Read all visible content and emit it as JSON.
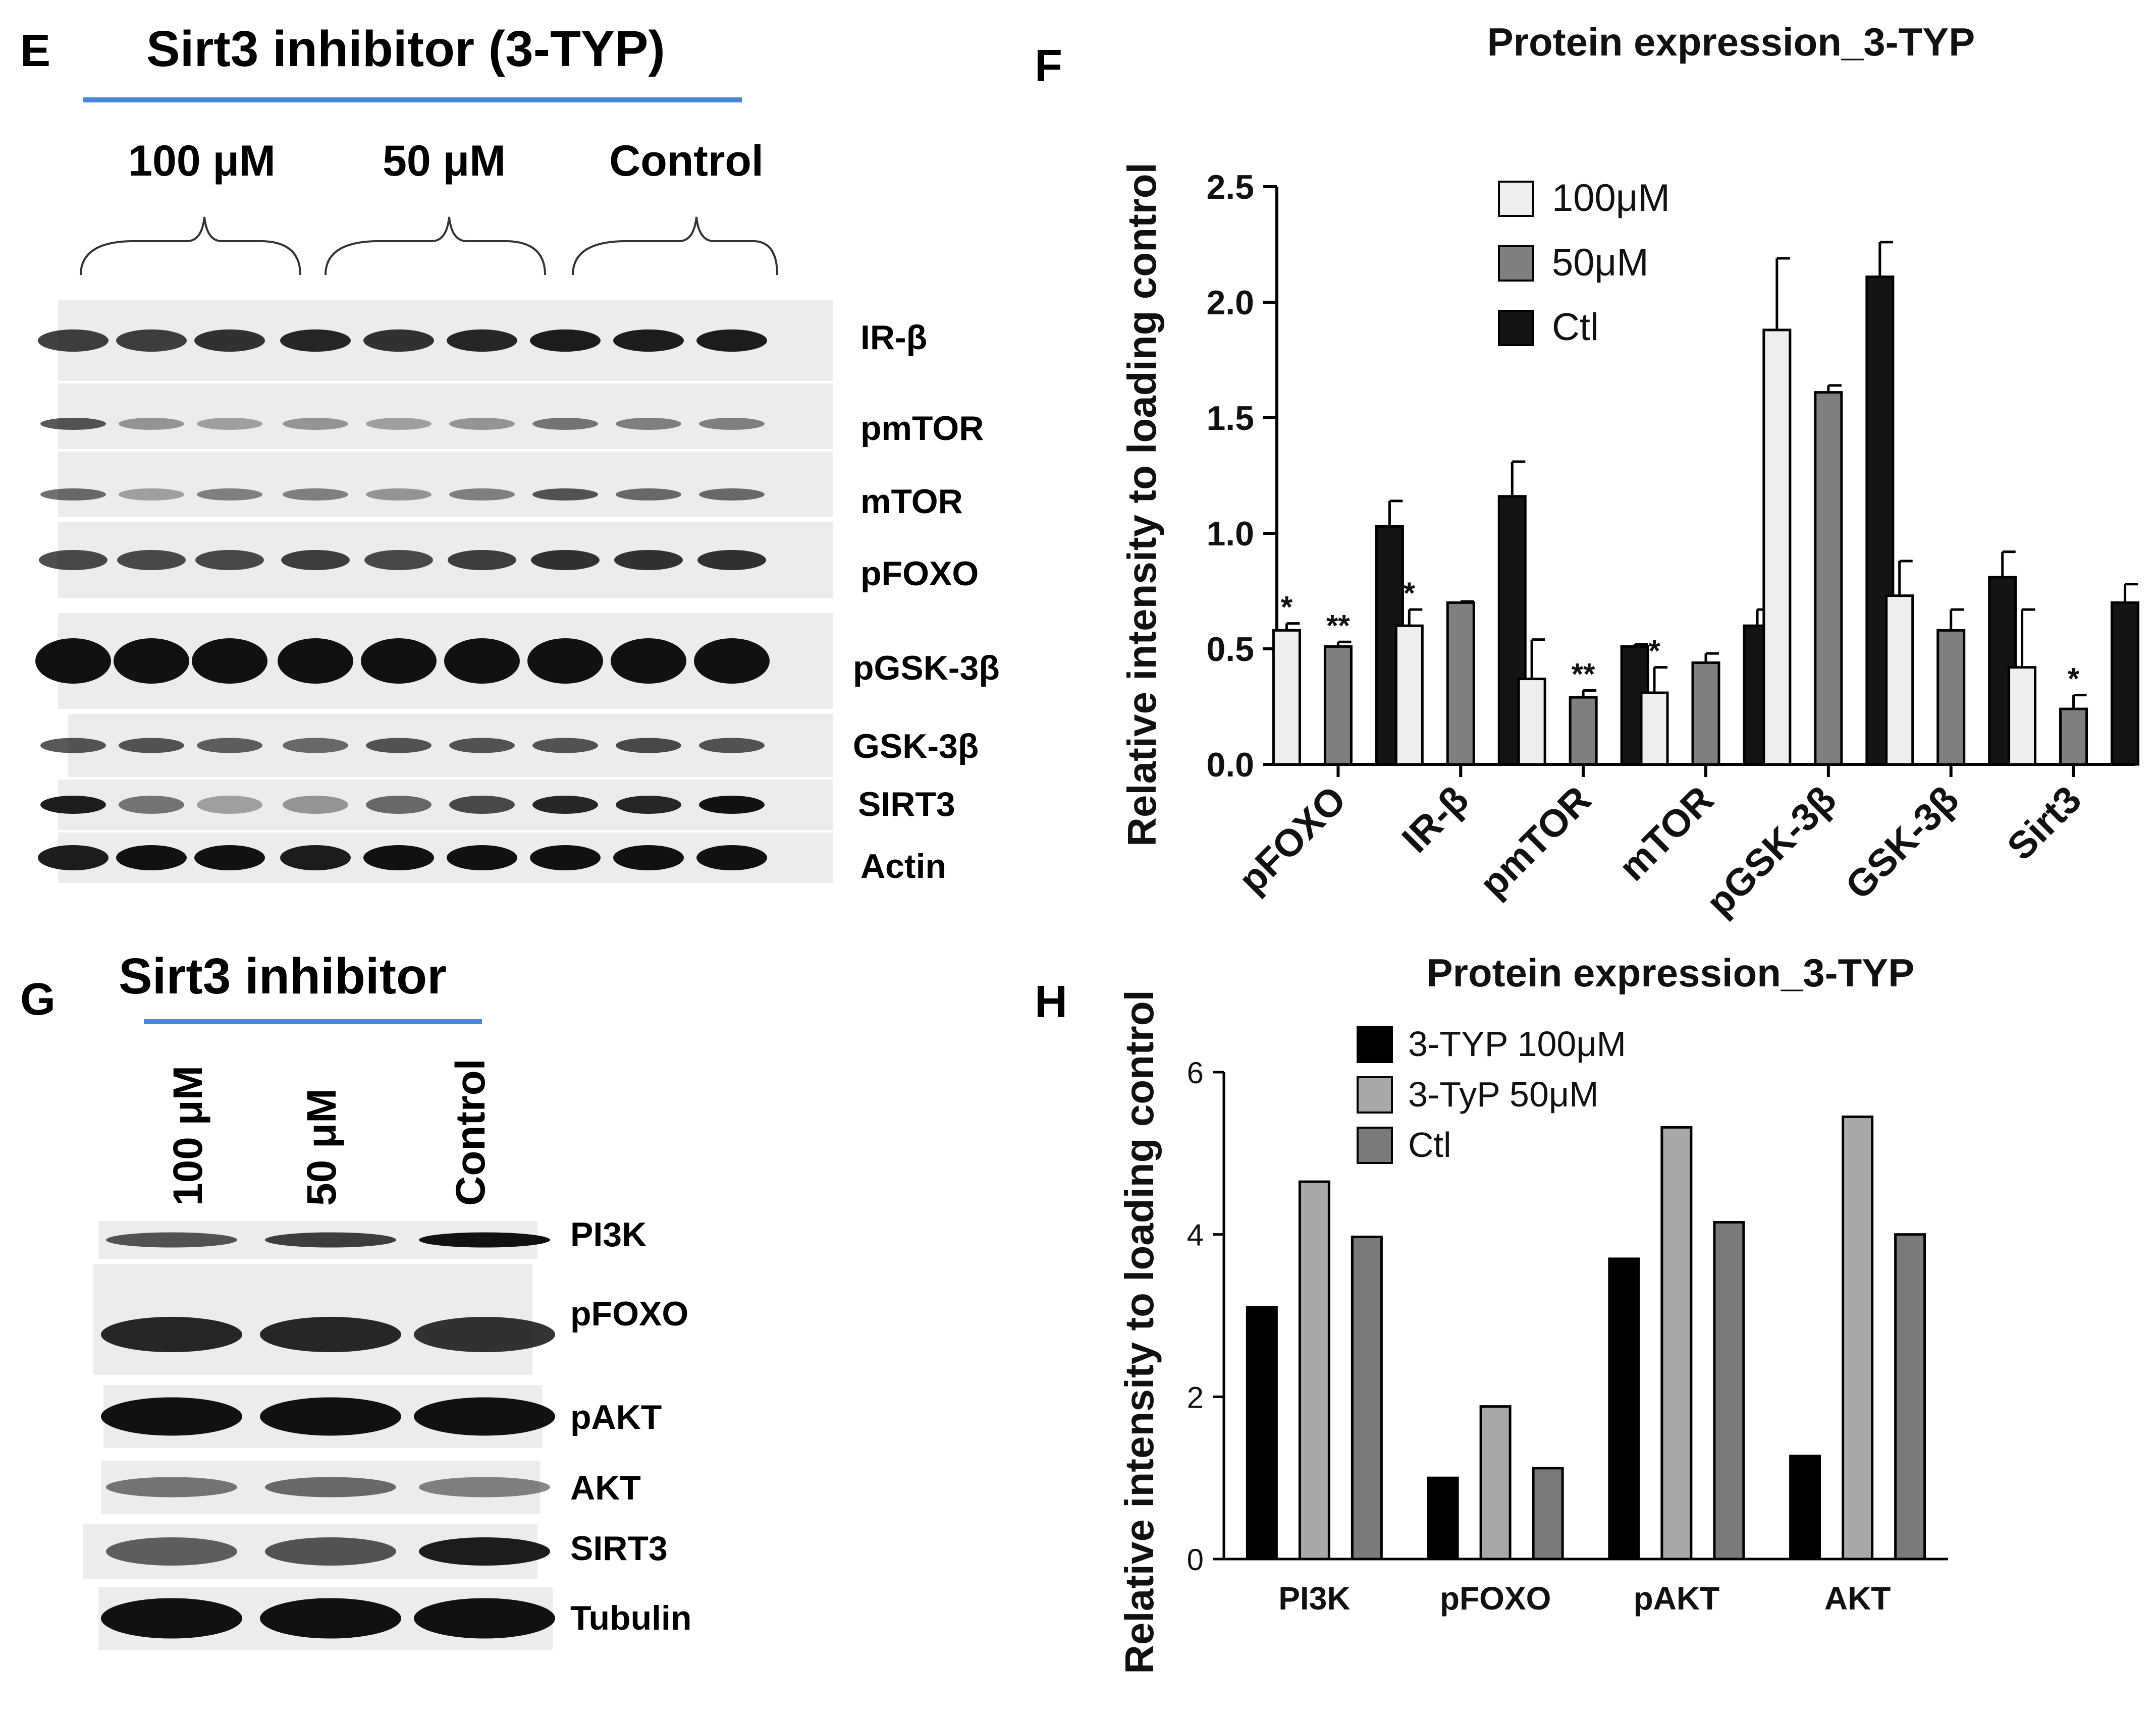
{
  "panel_e": {
    "letter": "E",
    "title": "Sirt3 inhibitor (3-TYP)",
    "groups": [
      "100 μM",
      "50 μM",
      "Control"
    ],
    "rows": [
      "IR-β",
      "pmTOR",
      "mTOR",
      "pFOXO",
      "pGSK-3β",
      "GSK-3β",
      "SIRT3",
      "Actin"
    ]
  },
  "panel_g": {
    "letter": "G",
    "title": "Sirt3 inhibitor",
    "lanes": [
      "100 μM",
      "50 μM",
      "Control"
    ],
    "rows": [
      "PI3K",
      "pFOXO",
      "pAKT",
      "AKT",
      "SIRT3",
      "Tubulin"
    ]
  },
  "panel_f": {
    "letter": "F"
  },
  "panel_h": {
    "letter": "H"
  },
  "chart_data": [
    {
      "type": "bar",
      "title": "Protein expression_3-TYP",
      "xlabel": "",
      "ylabel": "Relative intensity to loading control",
      "ylim": [
        0,
        2.5
      ],
      "yticks": [
        "0.0",
        "0.5",
        "1.0",
        "1.5",
        "2.0",
        "2.5"
      ],
      "categories": [
        "pFOXO",
        "IR-β",
        "pmTOR",
        "mTOR",
        "pGSK-3β",
        "GSK-3β",
        "Sirt3"
      ],
      "legend_position": "top-center",
      "series": [
        {
          "name": "100μM",
          "color": "#eeeeee",
          "values": [
            0.58,
            0.6,
            0.37,
            0.31,
            1.88,
            0.73,
            0.42
          ],
          "errors": [
            0.03,
            0.07,
            0.17,
            0.11,
            0.31,
            0.15,
            0.25
          ]
        },
        {
          "name": "50μM",
          "color": "#7f7f7f",
          "values": [
            0.51,
            0.7,
            0.29,
            0.44,
            1.61,
            0.58,
            0.24
          ],
          "errors": [
            0.02,
            0.005,
            0.03,
            0.04,
            0.03,
            0.09,
            0.06
          ]
        },
        {
          "name": "Ctl",
          "color": "#141414",
          "values": [
            1.03,
            1.16,
            0.51,
            0.6,
            2.11,
            0.81,
            0.7
          ],
          "errors": [
            0.11,
            0.15,
            0.01,
            0.07,
            0.15,
            0.11,
            0.08
          ]
        }
      ],
      "annotations": [
        {
          "category": "pFOXO",
          "series": "100μM",
          "text": "*"
        },
        {
          "category": "pFOXO",
          "series": "50μM",
          "text": "**"
        },
        {
          "category": "IR-β",
          "series": "100μM",
          "text": "*"
        },
        {
          "category": "pmTOR",
          "series": "50μM",
          "text": "**"
        },
        {
          "category": "mTOR",
          "series": "100μM",
          "text": "*"
        },
        {
          "category": "Sirt3",
          "series": "50μM",
          "text": "*"
        }
      ]
    },
    {
      "type": "bar",
      "title": "Protein expression_3-TYP",
      "xlabel": "",
      "ylabel": "Relative intensity to loading control",
      "ylim": [
        0,
        6
      ],
      "yticks": [
        "0",
        "2",
        "4",
        "6"
      ],
      "categories": [
        "PI3K",
        "pFOXO",
        "pAKT",
        "AKT"
      ],
      "legend_position": "top-left",
      "series": [
        {
          "name": "3-TYP 100μM",
          "color": "#000000",
          "values": [
            3.1,
            1.0,
            3.7,
            1.27
          ]
        },
        {
          "name": "3-TyP 50μM",
          "color": "#a8a8a8",
          "values": [
            4.65,
            1.88,
            5.32,
            5.45
          ]
        },
        {
          "name": "Ctl",
          "color": "#7a7a7a",
          "values": [
            3.97,
            1.12,
            4.15,
            4.0
          ]
        }
      ]
    }
  ]
}
